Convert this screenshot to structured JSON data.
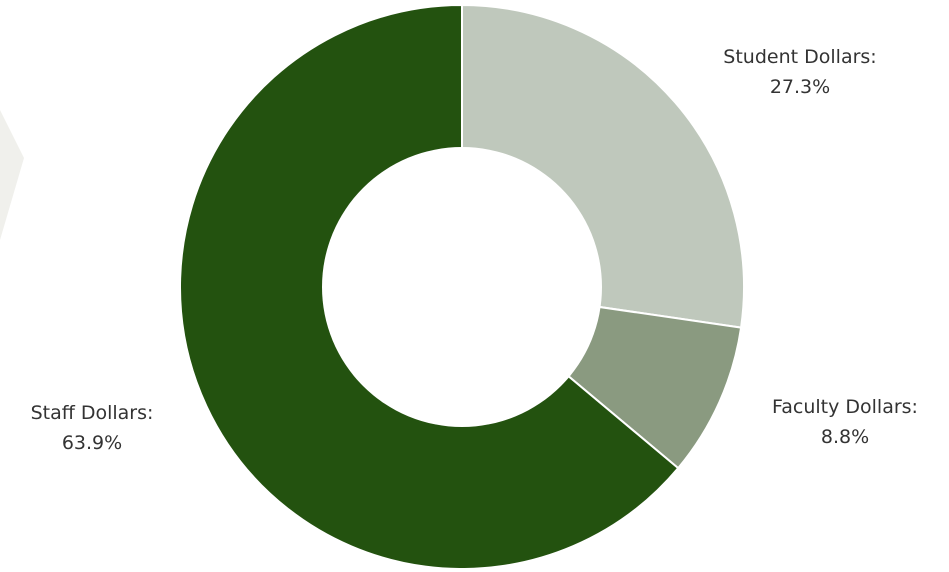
{
  "chart_data": {
    "type": "pie",
    "donut": true,
    "categories": [
      "Student Dollars",
      "Faculty Dollars",
      "Staff Dollars"
    ],
    "values": [
      27.3,
      8.8,
      63.9
    ],
    "labels": [
      {
        "name": "Student Dollars:",
        "value": "27.3%"
      },
      {
        "name": "Faculty Dollars:",
        "value": "8.8%"
      },
      {
        "name": "Staff Dollars:",
        "value": "63.9%"
      }
    ],
    "colors": [
      "#bfc8bc",
      "#8a9a80",
      "#23520f"
    ],
    "background_shape_color": "#f0f0ec"
  }
}
